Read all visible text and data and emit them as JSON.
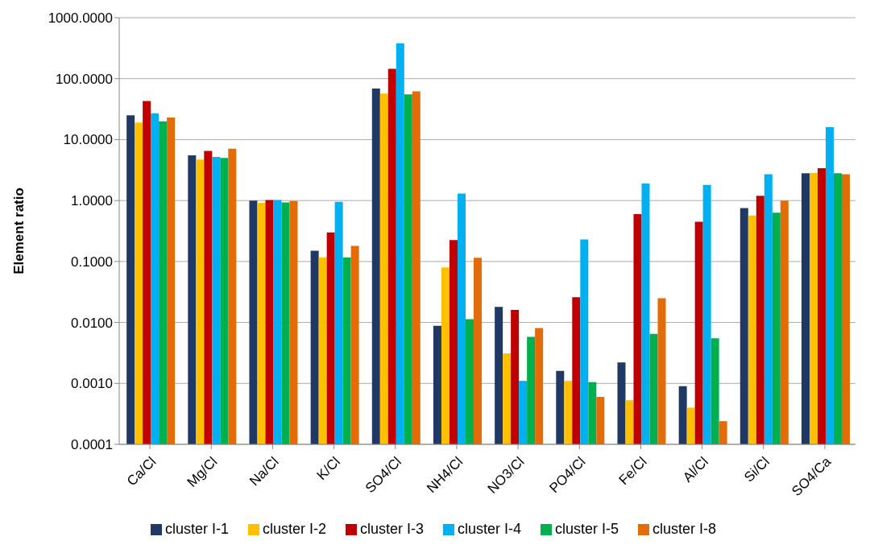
{
  "chart_data": {
    "type": "bar",
    "ylabel": "Element ratio",
    "log": true,
    "grid": "y",
    "legend": "bottom",
    "categories": [
      "Ca/Cl",
      "Mg/Cl",
      "Na/Cl",
      "K/Cl",
      "SO4/Cl",
      "NH4/Cl",
      "NO3/Cl",
      "PO4/Cl",
      "Fe/Cl",
      "Al/Cl",
      "Si/Cl",
      "SO4/Ca"
    ],
    "ylim": [
      0.0001,
      1000
    ],
    "yticks": [
      {
        "value": 0.0001,
        "label": "0.0001"
      },
      {
        "value": 0.001,
        "label": "0.0010"
      },
      {
        "value": 0.01,
        "label": "0.0100"
      },
      {
        "value": 0.1,
        "label": "0.1000"
      },
      {
        "value": 1,
        "label": "1.0000"
      },
      {
        "value": 10,
        "label": "10.0000"
      },
      {
        "value": 100,
        "label": "100.0000"
      },
      {
        "value": 1000,
        "label": "1000.0000"
      }
    ],
    "series": [
      {
        "name": "cluster I-1",
        "color": "#1f3864",
        "values": [
          25,
          5.5,
          1.0,
          0.15,
          69,
          0.0088,
          0.018,
          0.0016,
          0.0022,
          0.0009,
          0.75,
          2.8
        ]
      },
      {
        "name": "cluster I-2",
        "color": "#ffc000",
        "values": [
          19,
          4.7,
          0.92,
          0.117,
          57,
          0.08,
          0.0031,
          0.0011,
          0.00053,
          0.0004,
          0.57,
          2.85
        ]
      },
      {
        "name": "cluster I-3",
        "color": "#c00000",
        "values": [
          43,
          6.5,
          1.02,
          0.3,
          145,
          0.225,
          0.016,
          0.026,
          0.6,
          0.45,
          1.2,
          3.4
        ]
      },
      {
        "name": "cluster I-4",
        "color": "#00b0f0",
        "values": [
          27,
          5.2,
          1.02,
          0.95,
          380,
          1.3,
          0.0011,
          0.23,
          1.9,
          1.8,
          2.7,
          16
        ]
      },
      {
        "name": "cluster I-5",
        "color": "#00b050",
        "values": [
          20,
          5.0,
          0.93,
          0.117,
          55,
          0.0113,
          0.0058,
          0.00105,
          0.0065,
          0.0055,
          0.63,
          2.8
        ]
      },
      {
        "name": "cluster I-8",
        "color": "#e36c09",
        "values": [
          23,
          7.1,
          0.98,
          0.18,
          62,
          0.115,
          0.0081,
          0.0006,
          0.025,
          0.00024,
          1.0,
          2.7
        ]
      }
    ]
  }
}
